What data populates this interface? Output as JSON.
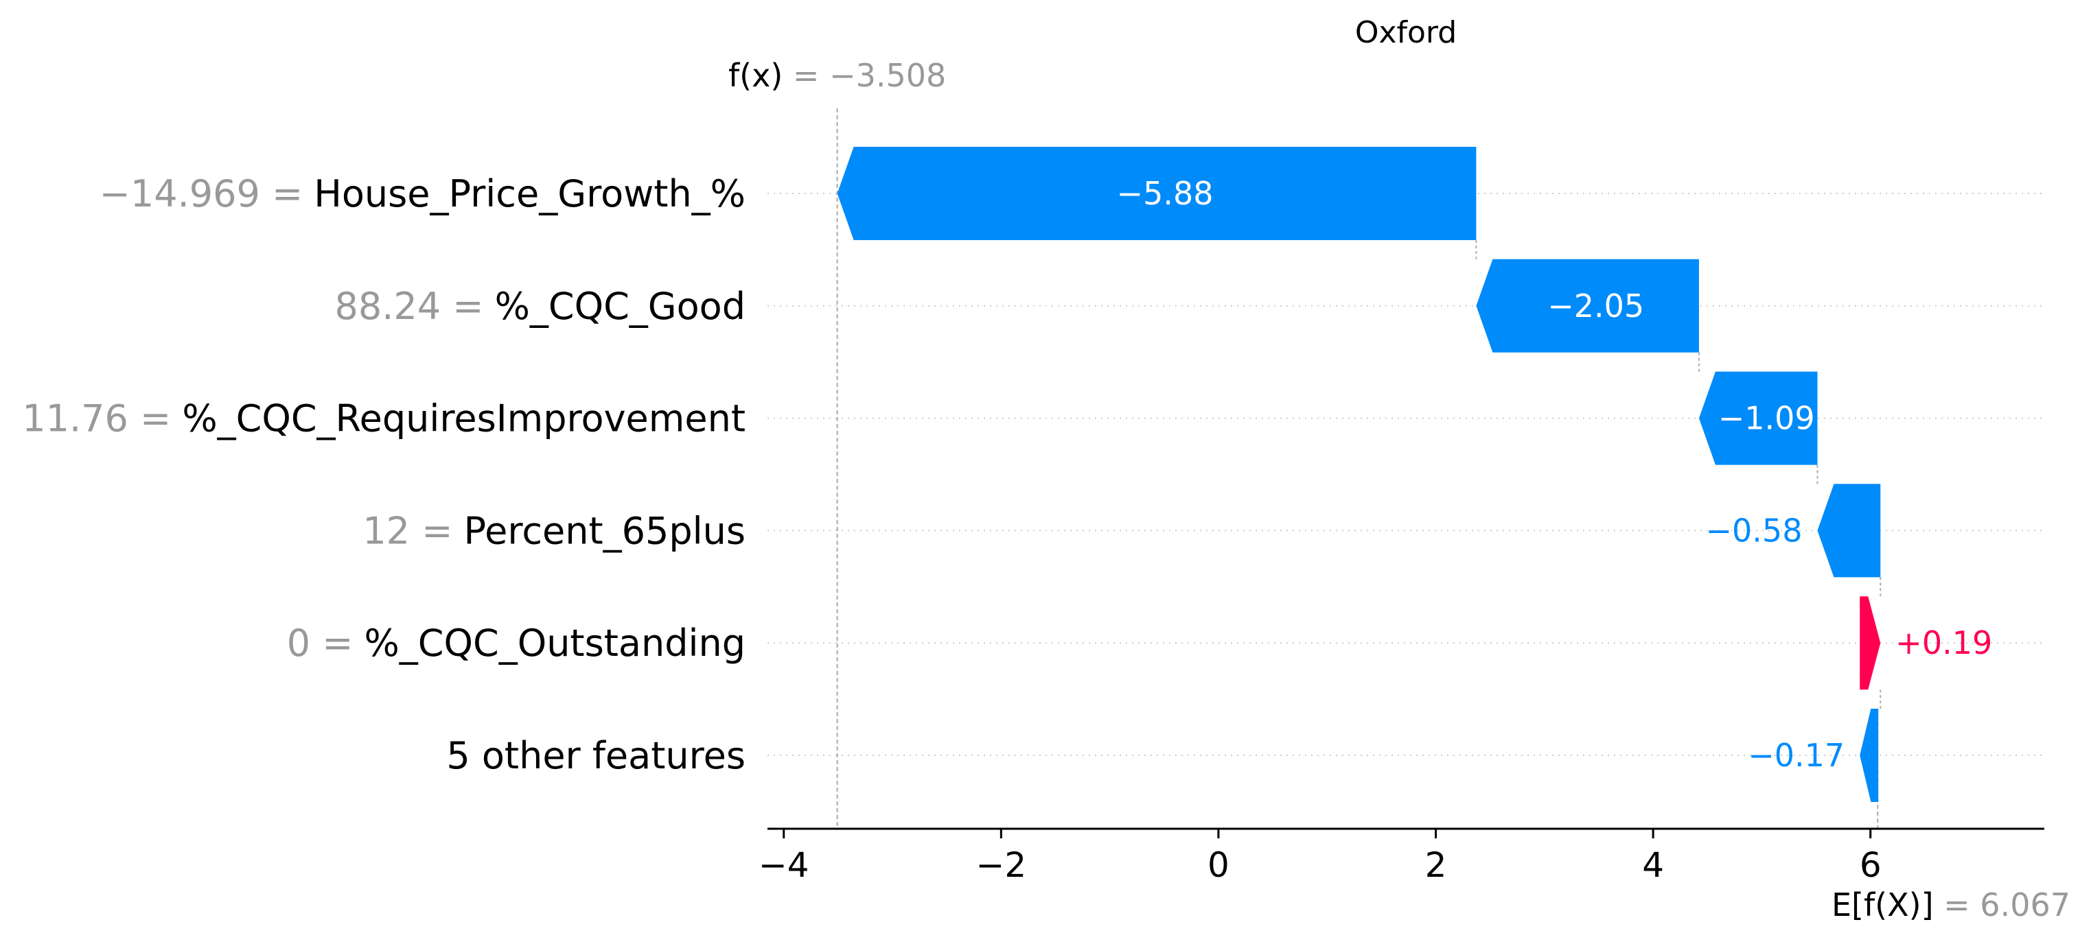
{
  "chart_data": {
    "type": "waterfall",
    "title": "Oxford",
    "fx": {
      "label": "f(x)",
      "value_text": "= −3.508",
      "value": -3.508
    },
    "base": {
      "label": "E[f(X)]",
      "value_text": "= 6.067",
      "value": 6.067
    },
    "xlim": [
      -4.15,
      7.6
    ],
    "xticks": [
      -4,
      -2,
      0,
      2,
      4,
      6
    ],
    "xtick_labels": [
      "−4",
      "−2",
      "0",
      "2",
      "4",
      "6"
    ],
    "features": [
      {
        "value_label": "−14.969 =",
        "name": "House_Price_Growth_%",
        "contribution": -5.88,
        "label": "−5.88"
      },
      {
        "value_label": "88.24 =",
        "name": "%_CQC_Good",
        "contribution": -2.05,
        "label": "−2.05"
      },
      {
        "value_label": "11.76 =",
        "name": "%_CQC_RequiresImprovement",
        "contribution": -1.09,
        "label": "−1.09"
      },
      {
        "value_label": "12 =",
        "name": "Percent_65plus",
        "contribution": -0.58,
        "label": "−0.58"
      },
      {
        "value_label": "0 =",
        "name": "%_CQC_Outstanding",
        "contribution": 0.19,
        "label": "+0.19"
      },
      {
        "value_label": "",
        "name": "5 other features",
        "contribution": -0.17,
        "label": "−0.17"
      }
    ],
    "colors": {
      "negative": "#008bfb",
      "positive": "#ff0051",
      "muted": "#999999"
    }
  }
}
